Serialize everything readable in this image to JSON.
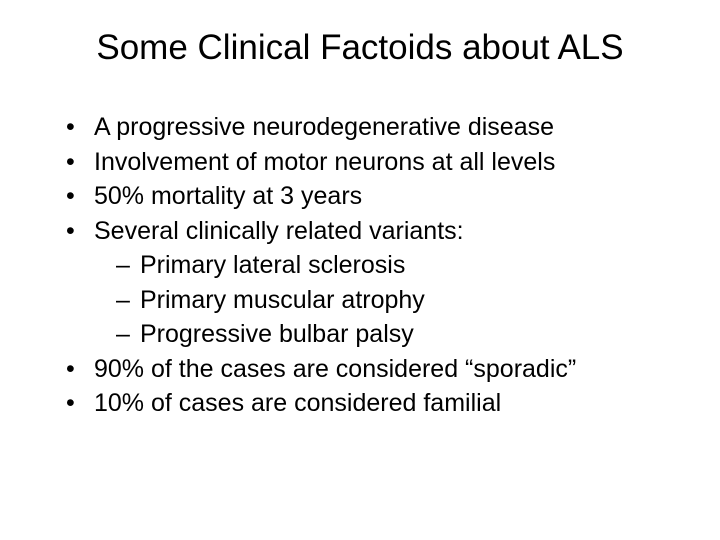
{
  "slide": {
    "title": "Some Clinical Factoids about ALS",
    "title_fontsize": 35,
    "body_fontsize": 25,
    "background_color": "#ffffff",
    "text_color": "#000000",
    "bullets": [
      {
        "text": "A progressive neurodegenerative disease"
      },
      {
        "text": "Involvement of motor neurons at all levels"
      },
      {
        "text": "50% mortality at 3 years"
      },
      {
        "text": "Several clinically related variants:",
        "children": [
          {
            "text": "Primary lateral sclerosis"
          },
          {
            "text": "Primary muscular atrophy"
          },
          {
            "text": "Progressive bulbar palsy"
          }
        ]
      },
      {
        "text": "90% of the cases are considered “sporadic”"
      },
      {
        "text": "10% of cases are considered familial"
      }
    ]
  }
}
